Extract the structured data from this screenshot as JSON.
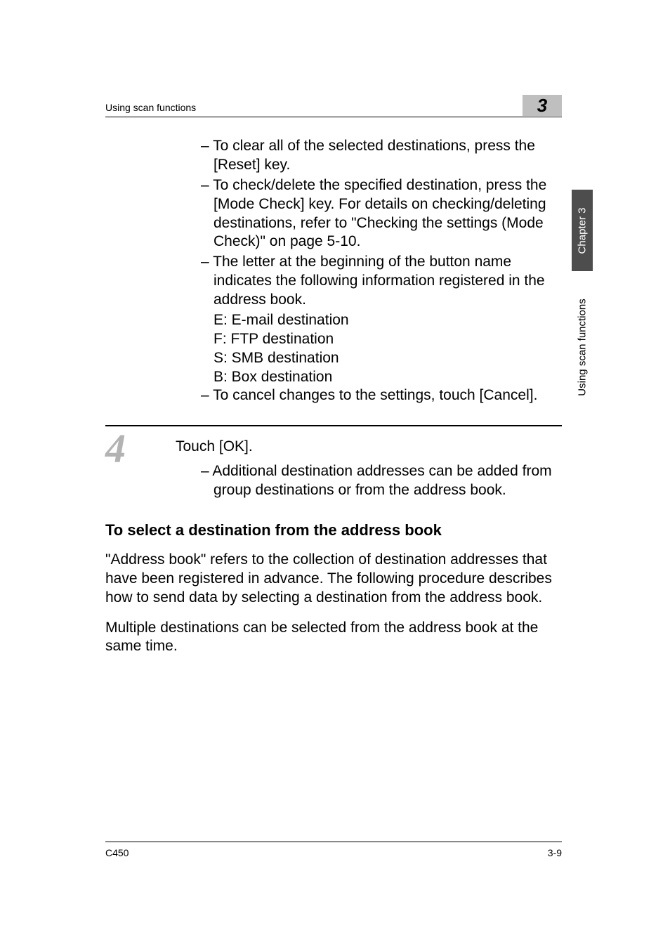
{
  "header": {
    "section_title": "Using scan functions",
    "chapter_badge": "3"
  },
  "sidebar": {
    "chapter_label": "Chapter 3",
    "section_label": "Using scan functions"
  },
  "bullets_top": {
    "b1": "– To clear all of the selected destinations, press the [Reset] key.",
    "b2": "– To check/delete the specified destination, press the [Mode Check] key. For details on checking/deleting destinations, refer to \"Checking the settings (Mode Check)\" on page 5-10.",
    "b3": "– The letter at the beginning of the button name indicates the following information registered in the address book.",
    "b3_s1": "E: E-mail destination",
    "b3_s2": "F: FTP destination",
    "b3_s3": "S: SMB destination",
    "b3_s4": "B: Box destination",
    "b4": "– To cancel changes to the settings, touch [Cancel]."
  },
  "step4": {
    "number": "4",
    "text": "Touch [OK].",
    "sub1": "– Additional destination addresses can be added from group destinations or from the address book."
  },
  "section": {
    "heading": "To select a destination from the address book",
    "p1": "\"Address book\" refers to the collection of destination addresses that have been registered in advance. The following procedure describes how to send data by selecting a destination from the address book.",
    "p2": "Multiple destinations can be selected from the address book at the same time."
  },
  "footer": {
    "left": "C450",
    "right": "3-9"
  },
  "colors": {
    "badge_bg": "#bfbfbf",
    "step_num": "#b3b3b3",
    "tab_dark_bg": "#4d4d4d",
    "tab_dark_fg": "#ffffff",
    "text": "#000000",
    "background": "#ffffff"
  }
}
